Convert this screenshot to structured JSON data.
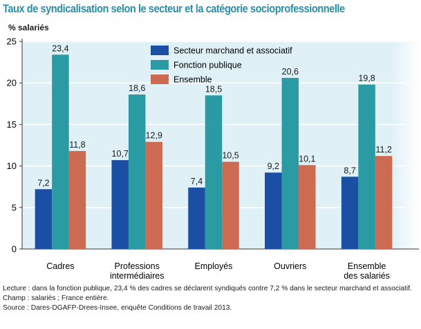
{
  "title": "Taux de syndicalisation selon le secteur et la catégorie socioprofessionnelle",
  "chart_data": {
    "type": "bar",
    "title": "Taux de syndicalisation selon le secteur et la catégorie socioprofessionnelle",
    "ylabel": "% salariés",
    "xlabel": "",
    "ylim": [
      0,
      25
    ],
    "yticks": [
      0,
      5,
      10,
      15,
      20,
      25
    ],
    "grid": true,
    "legend_position": "top-center",
    "categories": [
      [
        "Cadres"
      ],
      [
        "Professions",
        "intermédiaires"
      ],
      [
        "Employés"
      ],
      [
        "Ouvriers"
      ],
      [
        "Ensemble",
        "des salariés"
      ]
    ],
    "series": [
      {
        "name": "Secteur marchand et associatif",
        "color": "#1a4fa3",
        "values": [
          7.2,
          10.7,
          7.4,
          9.2,
          8.7
        ],
        "labels": [
          "7,2",
          "10,7",
          "7,4",
          "9,2",
          "8,7"
        ]
      },
      {
        "name": "Fonction publique",
        "color": "#2a9aa3",
        "values": [
          23.4,
          18.6,
          18.5,
          20.6,
          19.8
        ],
        "labels": [
          "23,4",
          "18,6",
          "18,5",
          "20,6",
          "19,8"
        ]
      },
      {
        "name": "Ensemble",
        "color": "#cd6b52",
        "values": [
          11.8,
          12.9,
          10.5,
          10.1,
          11.2
        ],
        "labels": [
          "11,8",
          "12,9",
          "10,5",
          "10,1",
          "11,2"
        ]
      }
    ]
  },
  "notes": {
    "lecture": "Lecture : dans la fonction publique, 23,4 % des cadres se déclarent syndiqués contre 7,2 % dans le secteur marchand et associatif.",
    "champ": "Champ : salariés ; France entière.",
    "source": "Source : Dares-DGAFP-Drees-Insee, enquête Conditions de travail 2013."
  }
}
